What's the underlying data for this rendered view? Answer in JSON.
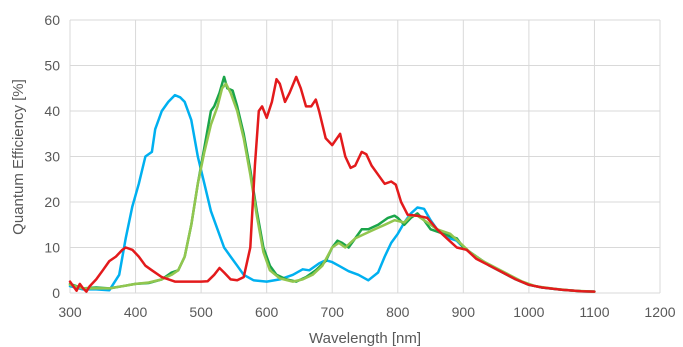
{
  "chart_data": {
    "type": "line",
    "xlabel": "Wavelength [nm]",
    "ylabel": "Quantum Efficiency [%]",
    "xlim": [
      300,
      1200
    ],
    "ylim": [
      0,
      60
    ],
    "xticks": [
      "300",
      "400",
      "500",
      "600",
      "700",
      "800",
      "900",
      "1000",
      "1100",
      "1200"
    ],
    "yticks": [
      "0",
      "10",
      "20",
      "30",
      "40",
      "50",
      "60"
    ],
    "grid": true,
    "legend": "none",
    "series": [
      {
        "color": "#00B0F0",
        "points": [
          [
            300,
            1.5
          ],
          [
            320,
            0.8
          ],
          [
            340,
            0.8
          ],
          [
            360,
            0.6
          ],
          [
            375,
            4
          ],
          [
            385,
            12
          ],
          [
            395,
            19
          ],
          [
            405,
            24
          ],
          [
            415,
            30
          ],
          [
            425,
            31
          ],
          [
            430,
            36
          ],
          [
            440,
            40
          ],
          [
            450,
            42
          ],
          [
            460,
            43.5
          ],
          [
            468,
            43
          ],
          [
            475,
            42
          ],
          [
            485,
            38
          ],
          [
            495,
            30
          ],
          [
            505,
            24
          ],
          [
            515,
            18
          ],
          [
            525,
            14
          ],
          [
            535,
            10
          ],
          [
            545,
            8
          ],
          [
            555,
            6
          ],
          [
            565,
            4
          ],
          [
            580,
            2.8
          ],
          [
            600,
            2.5
          ],
          [
            620,
            3
          ],
          [
            640,
            4
          ],
          [
            655,
            5.2
          ],
          [
            665,
            5
          ],
          [
            680,
            6.5
          ],
          [
            690,
            7.2
          ],
          [
            700,
            6.8
          ],
          [
            710,
            6
          ],
          [
            725,
            4.8
          ],
          [
            740,
            4
          ],
          [
            755,
            2.8
          ],
          [
            770,
            4.5
          ],
          [
            780,
            8
          ],
          [
            790,
            11
          ],
          [
            800,
            13
          ],
          [
            810,
            15.5
          ],
          [
            820,
            17.5
          ],
          [
            830,
            18.8
          ],
          [
            840,
            18.5
          ],
          [
            850,
            16
          ],
          [
            860,
            14
          ],
          [
            870,
            13
          ],
          [
            880,
            12
          ],
          [
            890,
            11.5
          ],
          [
            900,
            10
          ],
          [
            920,
            8
          ],
          [
            940,
            6
          ],
          [
            960,
            4.5
          ],
          [
            980,
            3
          ],
          [
            1000,
            1.8
          ],
          [
            1020,
            1.2
          ],
          [
            1050,
            0.7
          ],
          [
            1080,
            0.4
          ],
          [
            1100,
            0.3
          ]
        ]
      },
      {
        "color": "#1AA54A",
        "points": [
          [
            300,
            2
          ],
          [
            310,
            1.5
          ],
          [
            320,
            1
          ],
          [
            340,
            1.2
          ],
          [
            360,
            1
          ],
          [
            380,
            1.5
          ],
          [
            400,
            2
          ],
          [
            420,
            2.2
          ],
          [
            440,
            3
          ],
          [
            455,
            4.5
          ],
          [
            465,
            5
          ],
          [
            475,
            8
          ],
          [
            485,
            15
          ],
          [
            495,
            24
          ],
          [
            505,
            32
          ],
          [
            515,
            40
          ],
          [
            520,
            41
          ],
          [
            528,
            44
          ],
          [
            535,
            47.5
          ],
          [
            540,
            45
          ],
          [
            548,
            44.5
          ],
          [
            555,
            41
          ],
          [
            565,
            35
          ],
          [
            575,
            27
          ],
          [
            585,
            18
          ],
          [
            595,
            10
          ],
          [
            605,
            6
          ],
          [
            615,
            4
          ],
          [
            630,
            3
          ],
          [
            645,
            2.5
          ],
          [
            660,
            3.5
          ],
          [
            675,
            5
          ],
          [
            690,
            7
          ],
          [
            700,
            10
          ],
          [
            708,
            11.5
          ],
          [
            715,
            11
          ],
          [
            725,
            10
          ],
          [
            735,
            12
          ],
          [
            745,
            14
          ],
          [
            755,
            14
          ],
          [
            770,
            15
          ],
          [
            785,
            16.5
          ],
          [
            795,
            17
          ],
          [
            800,
            16.5
          ],
          [
            810,
            15
          ],
          [
            820,
            16.5
          ],
          [
            830,
            17.5
          ],
          [
            840,
            16
          ],
          [
            850,
            14
          ],
          [
            870,
            13
          ],
          [
            890,
            12
          ],
          [
            900,
            10
          ],
          [
            920,
            8
          ],
          [
            940,
            6
          ],
          [
            960,
            4.5
          ],
          [
            980,
            3
          ],
          [
            1000,
            1.8
          ],
          [
            1020,
            1.2
          ],
          [
            1050,
            0.7
          ],
          [
            1080,
            0.4
          ],
          [
            1100,
            0.3
          ]
        ]
      },
      {
        "color": "#92C64F",
        "points": [
          [
            300,
            1.8
          ],
          [
            320,
            1
          ],
          [
            340,
            1
          ],
          [
            360,
            1
          ],
          [
            380,
            1.5
          ],
          [
            400,
            2
          ],
          [
            420,
            2.3
          ],
          [
            440,
            3
          ],
          [
            455,
            4
          ],
          [
            465,
            5
          ],
          [
            475,
            8
          ],
          [
            485,
            15
          ],
          [
            495,
            24
          ],
          [
            505,
            31
          ],
          [
            515,
            37
          ],
          [
            525,
            41
          ],
          [
            532,
            45
          ],
          [
            538,
            46
          ],
          [
            545,
            44
          ],
          [
            555,
            40
          ],
          [
            565,
            34
          ],
          [
            575,
            26
          ],
          [
            585,
            17
          ],
          [
            595,
            9
          ],
          [
            605,
            5
          ],
          [
            620,
            3.2
          ],
          [
            640,
            2.5
          ],
          [
            655,
            3
          ],
          [
            670,
            4
          ],
          [
            685,
            6
          ],
          [
            700,
            10
          ],
          [
            710,
            11
          ],
          [
            720,
            10
          ],
          [
            735,
            12
          ],
          [
            750,
            13
          ],
          [
            765,
            14
          ],
          [
            780,
            15
          ],
          [
            795,
            16
          ],
          [
            810,
            15.5
          ],
          [
            820,
            17
          ],
          [
            830,
            17
          ],
          [
            840,
            16
          ],
          [
            860,
            14
          ],
          [
            880,
            13
          ],
          [
            895,
            11
          ],
          [
            910,
            9
          ],
          [
            930,
            7
          ],
          [
            950,
            5.5
          ],
          [
            970,
            4
          ],
          [
            990,
            2.5
          ],
          [
            1010,
            1.5
          ],
          [
            1040,
            0.9
          ],
          [
            1070,
            0.5
          ],
          [
            1100,
            0.3
          ]
        ]
      },
      {
        "color": "#E31A1C",
        "points": [
          [
            300,
            2.5
          ],
          [
            305,
            1.5
          ],
          [
            310,
            0.5
          ],
          [
            315,
            2
          ],
          [
            320,
            1
          ],
          [
            325,
            0.3
          ],
          [
            330,
            1.5
          ],
          [
            340,
            3
          ],
          [
            350,
            5
          ],
          [
            360,
            7
          ],
          [
            370,
            8
          ],
          [
            380,
            9.5
          ],
          [
            385,
            10
          ],
          [
            395,
            9.5
          ],
          [
            405,
            8
          ],
          [
            415,
            6
          ],
          [
            425,
            5
          ],
          [
            440,
            3.5
          ],
          [
            460,
            2.5
          ],
          [
            480,
            2.5
          ],
          [
            500,
            2.5
          ],
          [
            510,
            2.6
          ],
          [
            520,
            4
          ],
          [
            528,
            5.5
          ],
          [
            535,
            4.5
          ],
          [
            545,
            3
          ],
          [
            555,
            2.8
          ],
          [
            565,
            3.5
          ],
          [
            575,
            10
          ],
          [
            582,
            28
          ],
          [
            588,
            40
          ],
          [
            593,
            41
          ],
          [
            600,
            38.5
          ],
          [
            608,
            42
          ],
          [
            615,
            47
          ],
          [
            620,
            46
          ],
          [
            628,
            42
          ],
          [
            635,
            44
          ],
          [
            645,
            47.5
          ],
          [
            652,
            45
          ],
          [
            660,
            41
          ],
          [
            668,
            41
          ],
          [
            675,
            42.5
          ],
          [
            680,
            40
          ],
          [
            690,
            34
          ],
          [
            700,
            32.5
          ],
          [
            712,
            35
          ],
          [
            720,
            30
          ],
          [
            728,
            27.5
          ],
          [
            735,
            28
          ],
          [
            745,
            31
          ],
          [
            752,
            30.5
          ],
          [
            760,
            28
          ],
          [
            770,
            26
          ],
          [
            780,
            24
          ],
          [
            790,
            24.5
          ],
          [
            797,
            23.8
          ],
          [
            805,
            20
          ],
          [
            815,
            17.2
          ],
          [
            830,
            17
          ],
          [
            845,
            16.5
          ],
          [
            860,
            14
          ],
          [
            875,
            12
          ],
          [
            890,
            10
          ],
          [
            905,
            9.5
          ],
          [
            920,
            7.5
          ],
          [
            940,
            6
          ],
          [
            960,
            4.5
          ],
          [
            980,
            3
          ],
          [
            1000,
            1.8
          ],
          [
            1020,
            1.2
          ],
          [
            1050,
            0.7
          ],
          [
            1080,
            0.4
          ],
          [
            1100,
            0.3
          ]
        ]
      }
    ]
  }
}
